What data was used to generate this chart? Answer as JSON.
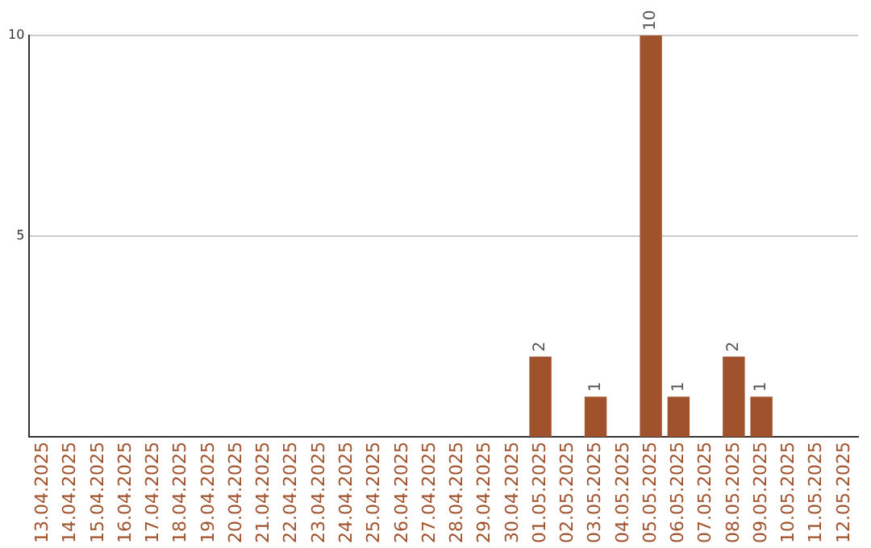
{
  "chart_data": {
    "type": "bar",
    "categories": [
      "13.04.2025",
      "14.04.2025",
      "15.04.2025",
      "16.04.2025",
      "17.04.2025",
      "18.04.2025",
      "19.04.2025",
      "20.04.2025",
      "21.04.2025",
      "22.04.2025",
      "23.04.2025",
      "24.04.2025",
      "25.04.2025",
      "26.04.2025",
      "27.04.2025",
      "28.04.2025",
      "29.04.2025",
      "30.04.2025",
      "01.05.2025",
      "02.05.2025",
      "03.05.2025",
      "04.05.2025",
      "05.05.2025",
      "06.05.2025",
      "07.05.2025",
      "08.05.2025",
      "09.05.2025",
      "10.05.2025",
      "11.05.2025",
      "12.05.2025"
    ],
    "values": [
      0,
      0,
      0,
      0,
      0,
      0,
      0,
      0,
      0,
      0,
      0,
      0,
      0,
      0,
      0,
      0,
      0,
      0,
      2,
      0,
      1,
      0,
      10,
      1,
      0,
      2,
      1,
      0,
      0,
      0
    ],
    "value_labels": [
      null,
      null,
      null,
      null,
      null,
      null,
      null,
      null,
      null,
      null,
      null,
      null,
      null,
      null,
      null,
      null,
      null,
      null,
      "2",
      null,
      "1",
      null,
      "10",
      "1",
      null,
      "2",
      "1",
      null,
      null,
      null
    ],
    "color": "#a0522d",
    "ylim": [
      0,
      10
    ],
    "yticks": [
      5,
      10
    ],
    "grid": "y",
    "legend": false
  }
}
